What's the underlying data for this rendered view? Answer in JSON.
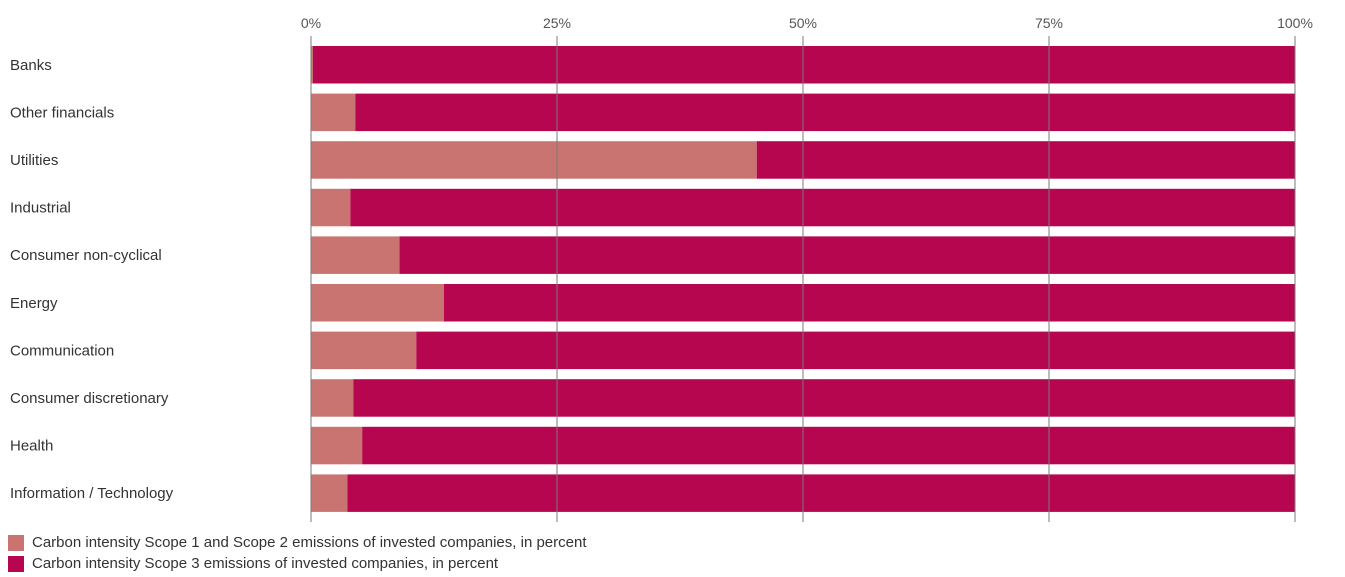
{
  "chart_data": {
    "type": "bar",
    "orientation": "horizontal",
    "stacked": true,
    "categories": [
      "Banks",
      "Other financials",
      "Utilities",
      "Industrial",
      "Consumer non-cyclical",
      "Energy",
      "Communication",
      "Consumer discretionary",
      "Health",
      "Information / Technology"
    ],
    "series": [
      {
        "name": "Carbon intensity Scope 1 and Scope 2 emissions of invested companies, in percent",
        "color": "#c97470",
        "values": [
          0.2,
          4.5,
          45.3,
          4.0,
          9.0,
          13.5,
          10.7,
          4.3,
          5.2,
          3.7
        ]
      },
      {
        "name": "Carbon intensity Scope 3 emissions of invested companies, in percent",
        "color": "#b5064f",
        "values": [
          99.8,
          95.5,
          54.7,
          96.0,
          91.0,
          86.5,
          89.3,
          95.7,
          94.8,
          96.3
        ]
      }
    ],
    "xticks": [
      "0%",
      "25%",
      "50%",
      "75%",
      "100%"
    ],
    "xlim": [
      0,
      100
    ],
    "grid": true,
    "legend_position": "bottom-left",
    "title": "",
    "xlabel": "",
    "ylabel": ""
  }
}
